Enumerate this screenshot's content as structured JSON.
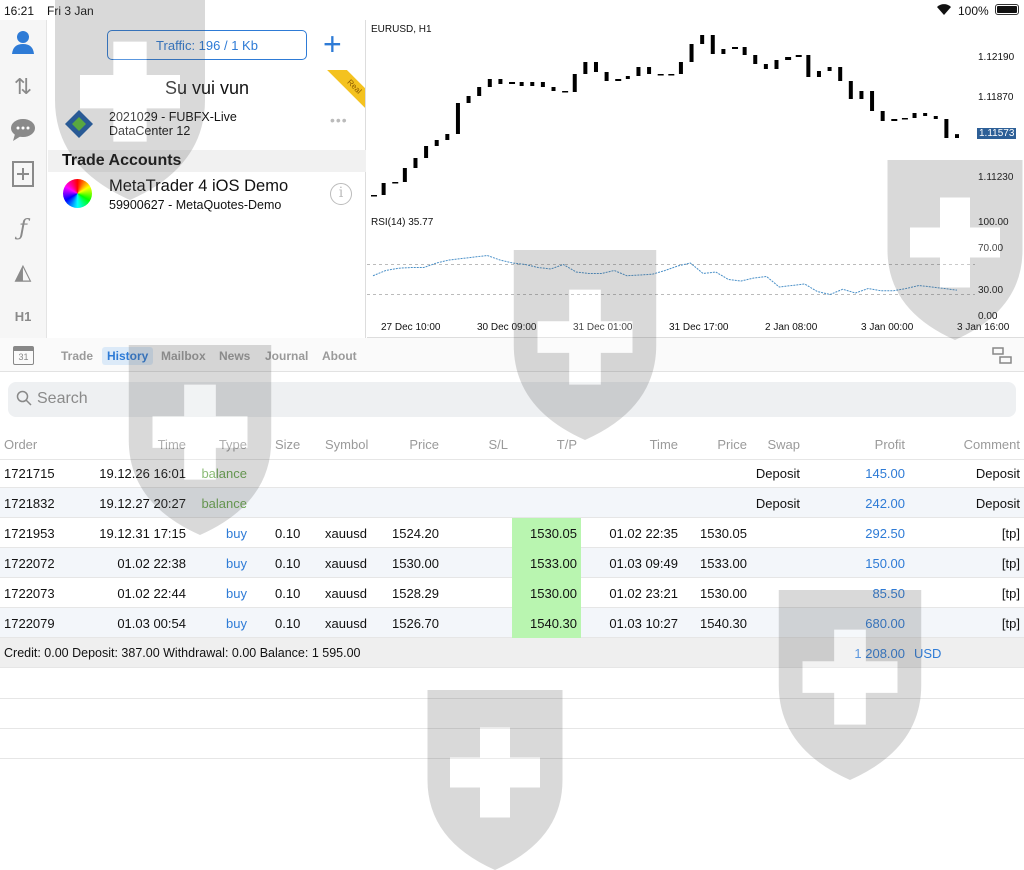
{
  "status": {
    "time": "16:21",
    "date": "Fri 3 Jan",
    "battery": "100%"
  },
  "sidebar": {
    "icons": [
      "accounts-icon",
      "quotes-icon",
      "chat-icon",
      "new-order-icon",
      "indicators-icon",
      "objects-icon",
      "timeframe-icon"
    ],
    "timeframe_label": "H1"
  },
  "account": {
    "traffic": "Traffic: 196 / 1 Kb",
    "name": "Su vui vun",
    "ribbon": "Real",
    "login": "2021029 - FUBFX-Live",
    "datacenter": "DataCenter 12",
    "section": "Trade Accounts",
    "demo_title": "MetaTrader 4 iOS Demo",
    "demo_sub": "59900627 - MetaQuotes-Demo"
  },
  "chart": {
    "symbol": "EURUSD, H1",
    "price_labels": [
      "1.12190",
      "1.11870",
      "1.11230"
    ],
    "current_price": "1.11573",
    "closes": [
      1.11086,
      1.11182,
      1.1119,
      1.11302,
      1.11382,
      1.11478,
      1.11526,
      1.11574,
      1.11822,
      1.11878,
      1.1195,
      1.12014,
      1.11974,
      1.1199,
      1.11958,
      1.1199,
      1.1195,
      1.11918,
      1.1191,
      1.12054,
      1.1215,
      1.1207,
      1.11998,
      1.12014,
      1.12038,
      1.1211,
      1.12054,
      1.12054,
      1.12054,
      1.1215,
      1.12294,
      1.12366,
      1.12214,
      1.12254,
      1.1227,
      1.12206,
      1.12134,
      1.12094,
      1.12166,
      1.1219,
      1.12206,
      1.1203,
      1.12078,
      1.1211,
      1.11998,
      1.11854,
      1.11918,
      1.11758,
      1.11678,
      1.11694,
      1.11702,
      1.11742,
      1.11718,
      1.11694,
      1.11542,
      1.11573
    ],
    "rsi_label": "RSI(14) 35.77",
    "rsi_levels": [
      "100.00",
      "70.00",
      "30.00",
      "0.00"
    ],
    "rsi": [
      55,
      62,
      65,
      66,
      66,
      72,
      76,
      78,
      80,
      82,
      76,
      72,
      70,
      66,
      64,
      70,
      60,
      58,
      58,
      62,
      55,
      56,
      57,
      62,
      68,
      72,
      58,
      60,
      50,
      48,
      52,
      54,
      40,
      42,
      44,
      34,
      30,
      37,
      32,
      38,
      35,
      35,
      38,
      42,
      40,
      38,
      35.77
    ],
    "time_labels": [
      "27 Dec 10:00",
      "30 Dec 09:00",
      "31 Dec 01:00",
      "31 Dec 17:00",
      "2 Jan 08:00",
      "3 Jan 00:00",
      "3 Jan 16:00"
    ]
  },
  "tabs": [
    {
      "label": "Trade"
    },
    {
      "label": "History",
      "selected": true
    },
    {
      "label": "Mailbox"
    },
    {
      "label": "News"
    },
    {
      "label": "Journal"
    },
    {
      "label": "About"
    }
  ],
  "search": {
    "placeholder": "Search"
  },
  "table": {
    "headers": [
      "Order",
      "Time",
      "Type",
      "Size",
      "Symbol",
      "Price",
      "S/L",
      "T/P",
      "Time",
      "Price",
      "Swap",
      "Profit",
      "Comment"
    ],
    "rows": [
      [
        "1721715",
        "19.12.26 16:01",
        "balance",
        "",
        "",
        "",
        "",
        "",
        "",
        "",
        "Deposit",
        "145.00",
        "Deposit"
      ],
      [
        "1721832",
        "19.12.27 20:27",
        "balance",
        "",
        "",
        "",
        "",
        "",
        "",
        "",
        "Deposit",
        "242.00",
        "Deposit"
      ],
      [
        "1721953",
        "19.12.31 17:15",
        "buy",
        "0.10",
        "xauusd",
        "1524.20",
        "",
        "1530.05",
        "01.02 22:35",
        "1530.05",
        "",
        "292.50",
        "[tp]"
      ],
      [
        "1722072",
        "01.02 22:38",
        "buy",
        "0.10",
        "xauusd",
        "1530.00",
        "",
        "1533.00",
        "01.03 09:49",
        "1533.00",
        "",
        "150.00",
        "[tp]"
      ],
      [
        "1722073",
        "01.02 22:44",
        "buy",
        "0.10",
        "xauusd",
        "1528.29",
        "",
        "1530.00",
        "01.02 23:21",
        "1530.00",
        "",
        "85.50",
        "[tp]"
      ],
      [
        "1722079",
        "01.03 00:54",
        "buy",
        "0.10",
        "xauusd",
        "1526.70",
        "",
        "1540.30",
        "01.03 10:27",
        "1540.30",
        "",
        "680.00",
        "[tp]"
      ]
    ],
    "summary": "Credit: 0.00 Deposit: 387.00 Withdrawal: 0.00 Balance: 1 595.00",
    "total": "1 208.00",
    "currency": "USD"
  },
  "colors": {
    "accent": "#2e7bd6",
    "balance": "#6aa84f",
    "tp_highlight": "#b9f5b0"
  }
}
